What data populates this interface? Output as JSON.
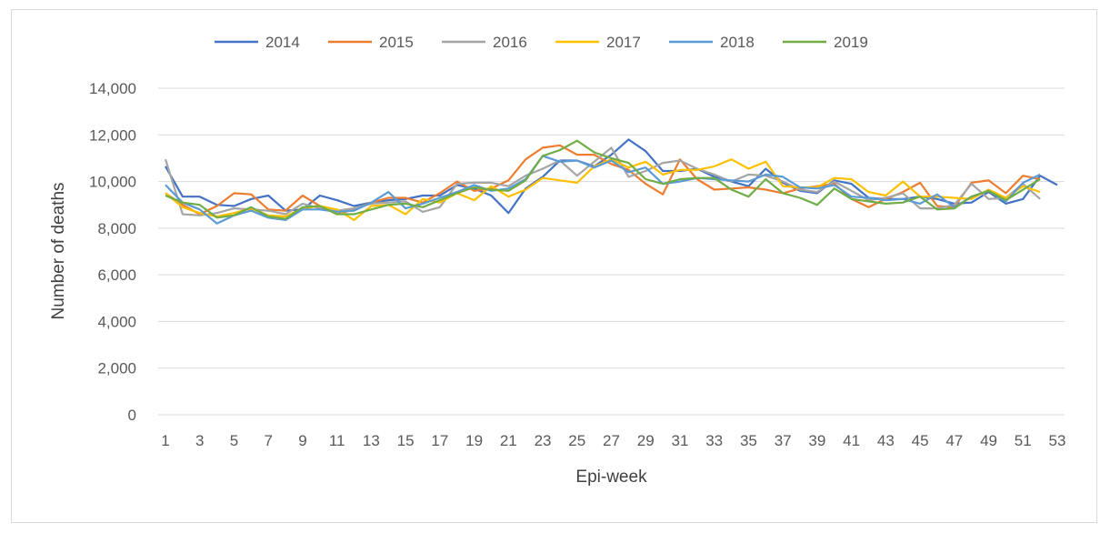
{
  "chart_data": {
    "type": "line",
    "title": "",
    "xlabel": "Epi-week",
    "ylabel": "Number of deaths",
    "ylim": [
      0,
      14000
    ],
    "yticks": [
      "0",
      "2,000",
      "4,000",
      "6,000",
      "8,000",
      "10,000",
      "12,000",
      "14,000"
    ],
    "xticks": [
      "1",
      "3",
      "5",
      "7",
      "9",
      "11",
      "13",
      "15",
      "17",
      "19",
      "21",
      "23",
      "25",
      "27",
      "29",
      "31",
      "33",
      "35",
      "37",
      "39",
      "41",
      "43",
      "45",
      "47",
      "49",
      "51",
      "53"
    ],
    "grid": "horizontal",
    "legend_position": "top",
    "series": [
      {
        "name": "2014",
        "color": "#4472C4",
        "values": [
          10650,
          9350,
          9350,
          9000,
          8950,
          9250,
          9400,
          8750,
          8800,
          9400,
          9200,
          8950,
          9100,
          9200,
          9250,
          9400,
          9400,
          9850,
          9700,
          9400,
          8650,
          9700,
          10200,
          10900,
          10900,
          10650,
          11150,
          11800,
          11300,
          10450,
          10450,
          10550,
          10200,
          10000,
          9800,
          10550,
          9950,
          9600,
          9500,
          10050,
          9900,
          9300,
          9250,
          9250,
          9350,
          9250,
          9050,
          9100,
          9550,
          9050,
          9250,
          10250,
          9850
        ]
      },
      {
        "name": "2015",
        "color": "#ED7D31",
        "values": [
          9500,
          9000,
          8600,
          8950,
          9500,
          9450,
          8800,
          8750,
          9400,
          8950,
          8600,
          8800,
          9100,
          9300,
          9300,
          9100,
          9500,
          10000,
          9600,
          9700,
          10050,
          10950,
          11450,
          11550,
          11150,
          11150,
          10750,
          10500,
          9900,
          9450,
          10950,
          10100,
          9650,
          9700,
          9750,
          9650,
          9500,
          9700,
          9800,
          9900,
          9250,
          8900,
          9250,
          9550,
          9950,
          8950,
          8900,
          9950,
          10050,
          9500,
          10250,
          10100
        ]
      },
      {
        "name": "2016",
        "color": "#A5A5A5",
        "values": [
          10950,
          8600,
          8550,
          8650,
          8850,
          8800,
          8750,
          8600,
          9050,
          8850,
          8750,
          8850,
          9050,
          9100,
          9150,
          8700,
          8900,
          9900,
          9950,
          9950,
          9800,
          10250,
          10550,
          10900,
          10250,
          10850,
          11450,
          10200,
          10450,
          10800,
          10900,
          10550,
          10300,
          10000,
          10300,
          10250,
          10000,
          9650,
          9550,
          10000,
          9600,
          9200,
          9300,
          9500,
          8850,
          8850,
          9000,
          9900,
          9250,
          9300,
          9900,
          9250
        ]
      },
      {
        "name": "2017",
        "color": "#FFC000",
        "values": [
          9500,
          8900,
          8650,
          8500,
          8650,
          8850,
          8550,
          8500,
          8850,
          8950,
          8800,
          8350,
          8950,
          9000,
          8600,
          9250,
          9100,
          9500,
          9200,
          9800,
          9350,
          9650,
          10150,
          10050,
          9950,
          10650,
          10950,
          10600,
          10850,
          10300,
          10500,
          10500,
          10650,
          10950,
          10550,
          10850,
          9800,
          9750,
          9750,
          10150,
          10100,
          9550,
          9400,
          10000,
          9350,
          9350,
          9300,
          9250,
          9650,
          9300,
          9800,
          9550
        ]
      },
      {
        "name": "2018",
        "color": "#5B9BD5",
        "values": [
          9850,
          9100,
          8800,
          8200,
          8550,
          8750,
          8450,
          8350,
          8800,
          8800,
          8700,
          8750,
          9100,
          9550,
          8850,
          9050,
          9300,
          9550,
          9850,
          9600,
          9700,
          10100,
          11100,
          10850,
          10900,
          10600,
          10900,
          10400,
          10600,
          9900,
          10000,
          10150,
          10100,
          10050,
          10000,
          10300,
          10200,
          9750,
          9700,
          9850,
          9350,
          9300,
          9200,
          9250,
          9050,
          9450,
          8900,
          9350,
          9600,
          9150,
          9950,
          10300
        ]
      },
      {
        "name": "2019",
        "color": "#70AD47",
        "values": [
          9400,
          9100,
          9000,
          8450,
          8550,
          8900,
          8500,
          8400,
          8900,
          8950,
          8600,
          8600,
          8800,
          9000,
          9050,
          8900,
          9200,
          9500,
          9750,
          9650,
          9600,
          10050,
          11100,
          11350,
          11750,
          11250,
          11000,
          10800,
          10100,
          9900,
          10100,
          10150,
          10150,
          9650,
          9350,
          10100,
          9500,
          9300,
          9000,
          9700,
          9250,
          9150,
          9050,
          9100,
          9350,
          8800,
          8850,
          9350,
          9600,
          9200,
          9650,
          10100
        ]
      }
    ]
  }
}
